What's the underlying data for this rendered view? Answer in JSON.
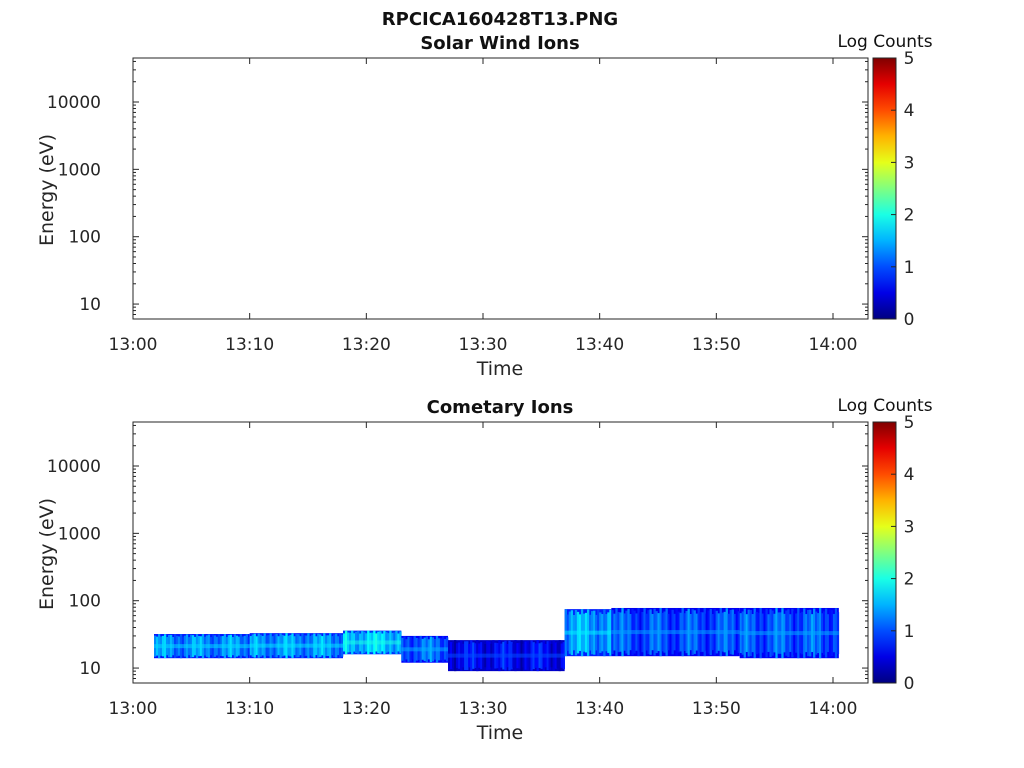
{
  "figure": {
    "title": "RPCICA160428T13.PNG"
  },
  "chart_data": [
    {
      "type": "heatmap",
      "title": "Solar Wind Ions",
      "xlabel": "Time",
      "ylabel": "Energy (eV)",
      "y_scale": "log",
      "ylim": [
        6,
        45000
      ],
      "xlim": [
        "13:00",
        "14:03"
      ],
      "x_ticks": [
        "13:00",
        "13:10",
        "13:20",
        "13:30",
        "13:40",
        "13:50",
        "14:00"
      ],
      "y_ticks": [
        {
          "value": 10,
          "label": "10"
        },
        {
          "value": 100,
          "label": "100"
        },
        {
          "value": 1000,
          "label": "1000"
        },
        {
          "value": 10000,
          "label": "10000"
        }
      ],
      "colorbar": {
        "label": "Log Counts",
        "min": 0,
        "max": 5,
        "ticks": [
          "0",
          "1",
          "2",
          "3",
          "4",
          "5"
        ],
        "colormap": "jet"
      },
      "bands": []
    },
    {
      "type": "heatmap",
      "title": "Cometary Ions",
      "xlabel": "Time",
      "ylabel": "Energy (eV)",
      "y_scale": "log",
      "ylim": [
        6,
        45000
      ],
      "xlim": [
        "13:00",
        "14:03"
      ],
      "x_ticks": [
        "13:00",
        "13:10",
        "13:20",
        "13:30",
        "13:40",
        "13:50",
        "14:00"
      ],
      "y_ticks": [
        {
          "value": 10,
          "label": "10"
        },
        {
          "value": 100,
          "label": "100"
        },
        {
          "value": 1000,
          "label": "1000"
        },
        {
          "value": 10000,
          "label": "10000"
        }
      ],
      "colorbar": {
        "label": "Log Counts",
        "min": 0,
        "max": 5,
        "ticks": [
          "0",
          "1",
          "2",
          "3",
          "4",
          "5"
        ],
        "colormap": "jet"
      },
      "bands": [
        {
          "t_start": 1.8,
          "t_end": 10,
          "e_low": 14,
          "e_high": 32,
          "log_counts": 1.3
        },
        {
          "t_start": 10,
          "t_end": 18,
          "e_low": 14,
          "e_high": 33,
          "log_counts": 1.35
        },
        {
          "t_start": 18,
          "t_end": 23,
          "e_low": 16,
          "e_high": 36,
          "log_counts": 1.6
        },
        {
          "t_start": 23,
          "t_end": 27,
          "e_low": 12,
          "e_high": 30,
          "log_counts": 1.1
        },
        {
          "t_start": 27,
          "t_end": 37,
          "e_low": 9,
          "e_high": 26,
          "log_counts": 0.6
        },
        {
          "t_start": 37,
          "t_end": 41,
          "e_low": 15,
          "e_high": 75,
          "log_counts": 1.4
        },
        {
          "t_start": 41,
          "t_end": 52,
          "e_low": 15,
          "e_high": 78,
          "log_counts": 1.0
        },
        {
          "t_start": 52,
          "t_end": 60.5,
          "e_low": 14,
          "e_high": 78,
          "log_counts": 1.05
        }
      ]
    }
  ]
}
